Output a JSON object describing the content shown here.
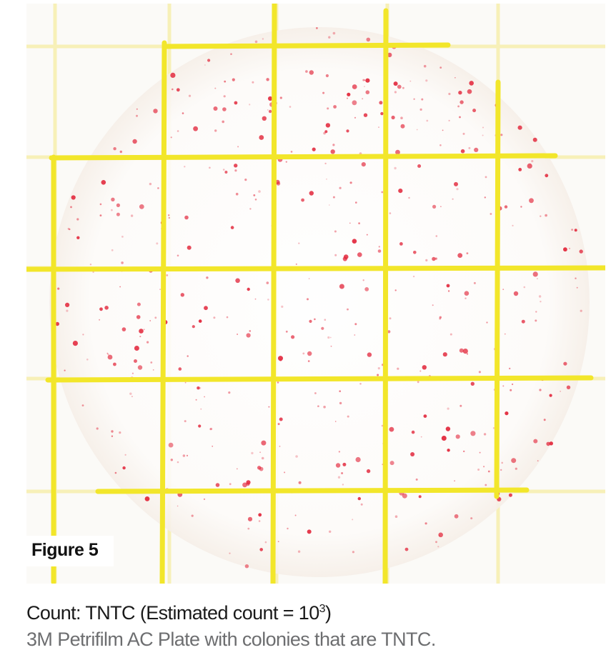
{
  "figure": {
    "label": "Figure 5"
  },
  "caption": {
    "count_prefix": "Count: TNTC (Estimated count = 10",
    "count_exponent": "3",
    "count_suffix": ")",
    "description": "3M Petrifilm AC Plate with colonies that are TNTC."
  },
  "colors": {
    "grid_line": "#f2e62a",
    "grid_faint": "#f7f0b8",
    "colony": "#e2283c",
    "background": "#fbfaf7",
    "caption_gray": "#6d6e70"
  }
}
